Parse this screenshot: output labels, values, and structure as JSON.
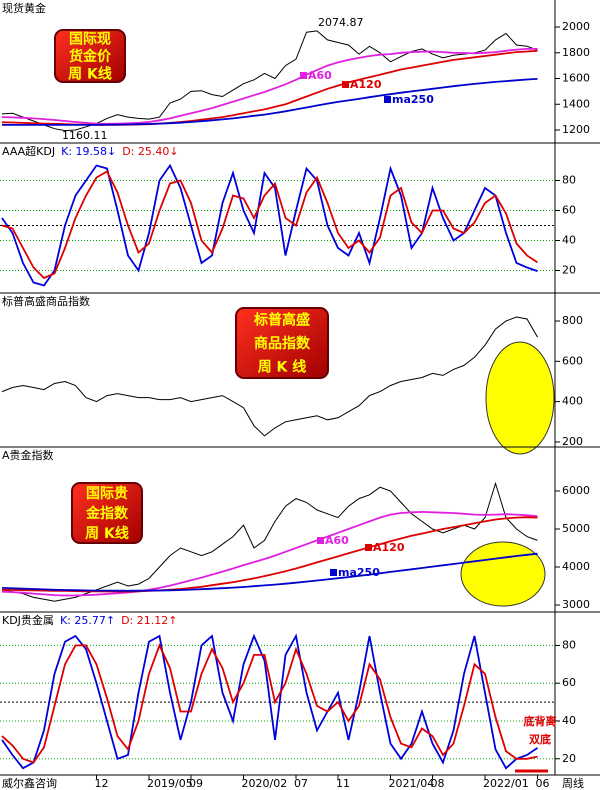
{
  "chart_data": [
    {
      "type": "line",
      "title": "现货黄金",
      "box_label": [
        "国际现",
        "货金价",
        "周 K线"
      ],
      "annotations": [
        {
          "text": "2074.87",
          "color": "#000000"
        },
        {
          "text": "1160.11",
          "color": "#000000"
        },
        {
          "text": "A60",
          "color": "#e020e0"
        },
        {
          "text": "A120",
          "color": "#dd0000"
        },
        {
          "text": "ma250",
          "color": "#0000cc"
        }
      ],
      "ylim": [
        1099,
        2210
      ],
      "yticks": [
        1200,
        1400,
        1600,
        1800,
        2000
      ],
      "grid": false,
      "series": [
        {
          "name": "price",
          "color": "#000000",
          "values": [
            1325,
            1330,
            1300,
            1270,
            1240,
            1210,
            1195,
            1200,
            1225,
            1250,
            1290,
            1320,
            1300,
            1290,
            1285,
            1300,
            1410,
            1440,
            1500,
            1505,
            1475,
            1460,
            1510,
            1560,
            1590,
            1640,
            1600,
            1700,
            1750,
            1960,
            1970,
            1900,
            1880,
            1860,
            1790,
            1850,
            1800,
            1730,
            1770,
            1810,
            1830,
            1790,
            1760,
            1780,
            1790,
            1800,
            1820,
            1900,
            1950,
            1860,
            1850,
            1820
          ]
        },
        {
          "name": "ma60",
          "color": "#e020e0",
          "values": [
            1300,
            1298,
            1295,
            1290,
            1285,
            1278,
            1270,
            1262,
            1255,
            1250,
            1248,
            1250,
            1252,
            1255,
            1262,
            1275,
            1290,
            1310,
            1330,
            1350,
            1370,
            1395,
            1420,
            1445,
            1470,
            1495,
            1525,
            1555,
            1590,
            1630,
            1665,
            1700,
            1725,
            1745,
            1760,
            1775,
            1785,
            1790,
            1800,
            1805,
            1808,
            1810,
            1805,
            1800,
            1798,
            1795,
            1800,
            1805,
            1815,
            1825,
            1830,
            1830
          ]
        },
        {
          "name": "ma120",
          "color": "#dd0000",
          "values": [
            1260,
            1258,
            1255,
            1252,
            1250,
            1248,
            1245,
            1243,
            1242,
            1240,
            1240,
            1240,
            1241,
            1243,
            1245,
            1250,
            1255,
            1262,
            1270,
            1280,
            1290,
            1300,
            1315,
            1330,
            1345,
            1360,
            1380,
            1400,
            1430,
            1460,
            1490,
            1520,
            1545,
            1570,
            1590,
            1610,
            1630,
            1650,
            1670,
            1685,
            1700,
            1715,
            1730,
            1745,
            1755,
            1765,
            1775,
            1785,
            1795,
            1805,
            1810,
            1815
          ]
        },
        {
          "name": "ma250",
          "color": "#0000cc",
          "values": [
            1240,
            1240,
            1240,
            1240,
            1240,
            1240,
            1240,
            1240,
            1240,
            1240,
            1241,
            1242,
            1243,
            1245,
            1247,
            1250,
            1253,
            1257,
            1262,
            1268,
            1275,
            1282,
            1290,
            1300,
            1310,
            1320,
            1332,
            1345,
            1360,
            1375,
            1390,
            1405,
            1418,
            1430,
            1442,
            1455,
            1467,
            1478,
            1490,
            1500,
            1510,
            1520,
            1530,
            1540,
            1550,
            1558,
            1566,
            1574,
            1580,
            1586,
            1592,
            1597
          ]
        }
      ]
    },
    {
      "type": "line",
      "title": "AAA超KDJ",
      "readouts": [
        "K: 19.58↓",
        "D: 25.40↓"
      ],
      "ylim": [
        5,
        105
      ],
      "yticks": [
        20,
        40,
        60,
        80
      ],
      "grid": true,
      "grid_color": "#00aa00",
      "reference_line": 50,
      "series": [
        {
          "name": "K",
          "color": "#0000dd",
          "values": [
            55,
            45,
            25,
            12,
            10,
            20,
            50,
            70,
            80,
            90,
            88,
            60,
            30,
            20,
            45,
            80,
            90,
            75,
            50,
            25,
            30,
            65,
            85,
            60,
            45,
            85,
            75,
            30,
            60,
            88,
            80,
            50,
            35,
            30,
            45,
            25,
            55,
            88,
            70,
            35,
            45,
            75,
            55,
            40,
            45,
            60,
            75,
            70,
            45,
            25,
            22,
            19.58
          ]
        },
        {
          "name": "D",
          "color": "#dd0000",
          "values": [
            50,
            48,
            35,
            22,
            15,
            18,
            35,
            55,
            70,
            82,
            86,
            72,
            50,
            32,
            38,
            60,
            78,
            80,
            65,
            40,
            32,
            48,
            70,
            68,
            55,
            70,
            78,
            55,
            50,
            72,
            82,
            65,
            45,
            35,
            40,
            32,
            42,
            70,
            75,
            52,
            45,
            60,
            60,
            48,
            45,
            52,
            65,
            70,
            58,
            38,
            30,
            25.4
          ]
        }
      ]
    },
    {
      "type": "line",
      "title": "标普高盛商品指数",
      "box_label": [
        "标普高盛",
        "商品指数",
        "周  K 线"
      ],
      "ylim": [
        175,
        939
      ],
      "yticks": [
        200,
        400,
        600,
        800
      ],
      "grid": false,
      "series": [
        {
          "name": "index",
          "color": "#000000",
          "values": [
            450,
            470,
            480,
            470,
            460,
            490,
            500,
            480,
            420,
            400,
            430,
            440,
            430,
            420,
            420,
            410,
            410,
            420,
            400,
            410,
            420,
            430,
            400,
            370,
            280,
            230,
            270,
            300,
            310,
            320,
            330,
            310,
            320,
            350,
            380,
            430,
            450,
            480,
            500,
            510,
            520,
            540,
            530,
            560,
            580,
            620,
            680,
            760,
            800,
            820,
            810,
            720
          ]
        }
      ]
    },
    {
      "type": "line",
      "title": "A贵金指数",
      "box_label": [
        "国际贵",
        "金指数",
        "周 K线"
      ],
      "annotations": [
        {
          "text": "A60",
          "color": "#e020e0"
        },
        {
          "text": "A120",
          "color": "#dd0000"
        },
        {
          "text": "ma250",
          "color": "#0000cc"
        }
      ],
      "ylim": [
        2816,
        7158
      ],
      "yticks": [
        3000,
        4000,
        5000,
        6000
      ],
      "grid": false,
      "series": [
        {
          "name": "index",
          "color": "#000000",
          "values": [
            3400,
            3350,
            3300,
            3200,
            3150,
            3100,
            3150,
            3200,
            3300,
            3400,
            3500,
            3600,
            3500,
            3550,
            3700,
            4000,
            4300,
            4500,
            4400,
            4300,
            4400,
            4600,
            4800,
            5100,
            4500,
            4700,
            5200,
            5600,
            5800,
            5700,
            5500,
            5400,
            5300,
            5600,
            5800,
            5900,
            6100,
            6000,
            5700,
            5400,
            5200,
            5000,
            4900,
            5000,
            5100,
            5000,
            5300,
            6200,
            5300,
            5000,
            4800,
            4700
          ]
        },
        {
          "name": "ma60",
          "color": "#e020e0",
          "values": [
            3350,
            3340,
            3320,
            3300,
            3280,
            3260,
            3250,
            3250,
            3260,
            3270,
            3290,
            3310,
            3330,
            3360,
            3400,
            3450,
            3510,
            3580,
            3650,
            3720,
            3800,
            3880,
            3960,
            4050,
            4130,
            4210,
            4300,
            4400,
            4500,
            4600,
            4700,
            4800,
            4900,
            5000,
            5100,
            5200,
            5300,
            5380,
            5420,
            5440,
            5450,
            5440,
            5430,
            5420,
            5400,
            5380,
            5370,
            5380,
            5390,
            5380,
            5360,
            5340
          ]
        },
        {
          "name": "ma120",
          "color": "#dd0000",
          "values": [
            3400,
            3395,
            3390,
            3385,
            3380,
            3375,
            3370,
            3365,
            3360,
            3358,
            3356,
            3355,
            3355,
            3360,
            3370,
            3385,
            3400,
            3420,
            3450,
            3480,
            3520,
            3560,
            3600,
            3650,
            3700,
            3760,
            3820,
            3890,
            3960,
            4040,
            4120,
            4200,
            4280,
            4360,
            4440,
            4520,
            4600,
            4680,
            4750,
            4820,
            4880,
            4940,
            5000,
            5050,
            5100,
            5150,
            5200,
            5250,
            5280,
            5300,
            5310,
            5300
          ]
        },
        {
          "name": "ma250",
          "color": "#0000cc",
          "values": [
            3450,
            3440,
            3430,
            3420,
            3410,
            3400,
            3395,
            3390,
            3385,
            3380,
            3378,
            3376,
            3375,
            3376,
            3378,
            3382,
            3388,
            3395,
            3405,
            3415,
            3428,
            3442,
            3458,
            3475,
            3495,
            3515,
            3538,
            3562,
            3588,
            3615,
            3645,
            3675,
            3705,
            3735,
            3768,
            3800,
            3835,
            3870,
            3905,
            3940,
            3975,
            4010,
            4045,
            4080,
            4115,
            4150,
            4185,
            4220,
            4255,
            4290,
            4320,
            4350
          ]
        }
      ]
    },
    {
      "type": "line",
      "title": "KDJ贵金属",
      "readouts": [
        "K: 25.77↑",
        "D: 21.12↑"
      ],
      "annotations": [
        {
          "text": "底背离",
          "color": "#dd0000"
        },
        {
          "text": "双底",
          "color": "#dd0000"
        }
      ],
      "ylim": [
        11.4,
        97.7
      ],
      "yticks": [
        20,
        40,
        60,
        80
      ],
      "grid": true,
      "grid_color": "#00aa00",
      "reference_line": 50,
      "x_axis_left": "威尔鑫咨询",
      "x_axis_right": "周线",
      "categories": [
        null,
        null,
        null,
        null,
        null,
        null,
        null,
        null,
        null,
        "12",
        null,
        null,
        null,
        null,
        "2019/05",
        null,
        null,
        null,
        "09",
        null,
        null,
        null,
        null,
        "2020/02",
        null,
        null,
        null,
        null,
        "07",
        null,
        null,
        null,
        "11",
        null,
        null,
        null,
        null,
        "2021/04",
        null,
        null,
        null,
        "08",
        null,
        null,
        null,
        null,
        "2022/01",
        null,
        null,
        null,
        null,
        "06"
      ],
      "series": [
        {
          "name": "K",
          "color": "#0000dd",
          "values": [
            30,
            22,
            15,
            18,
            35,
            65,
            82,
            85,
            78,
            60,
            40,
            20,
            22,
            55,
            82,
            85,
            55,
            30,
            50,
            80,
            85,
            55,
            40,
            70,
            85,
            72,
            30,
            75,
            85,
            55,
            35,
            45,
            55,
            30,
            55,
            85,
            55,
            28,
            20,
            28,
            45,
            28,
            18,
            35,
            65,
            85,
            55,
            25,
            15,
            20,
            22,
            25.77
          ]
        },
        {
          "name": "D",
          "color": "#dd0000",
          "values": [
            32,
            27,
            20,
            18,
            26,
            48,
            70,
            80,
            80,
            70,
            52,
            32,
            25,
            40,
            65,
            80,
            68,
            45,
            45,
            65,
            78,
            68,
            50,
            60,
            75,
            75,
            50,
            60,
            78,
            65,
            48,
            45,
            50,
            40,
            48,
            70,
            62,
            42,
            28,
            26,
            36,
            32,
            22,
            28,
            48,
            70,
            65,
            42,
            24,
            20,
            20,
            21.12
          ]
        }
      ]
    }
  ]
}
